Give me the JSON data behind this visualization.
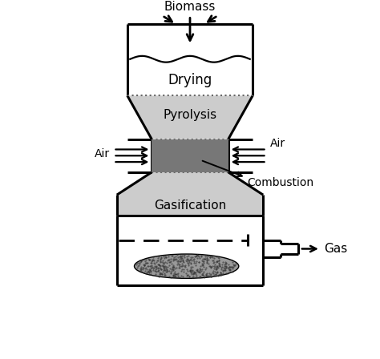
{
  "bg_color": "#ffffff",
  "line_color": "#000000",
  "gray_dark": "#777777",
  "gray_pyrolysis": "#cccccc",
  "dotted_color": "#666666",
  "labels": {
    "biomass": "Biomass",
    "drying": "Drying",
    "pyrolysis": "Pyrolysis",
    "air_left": "Air",
    "air_right": "Air",
    "combustion": "Combustion",
    "gasification": "Gasification",
    "gas": "Gas"
  },
  "figsize": [
    4.74,
    4.48
  ],
  "dpi": 100
}
